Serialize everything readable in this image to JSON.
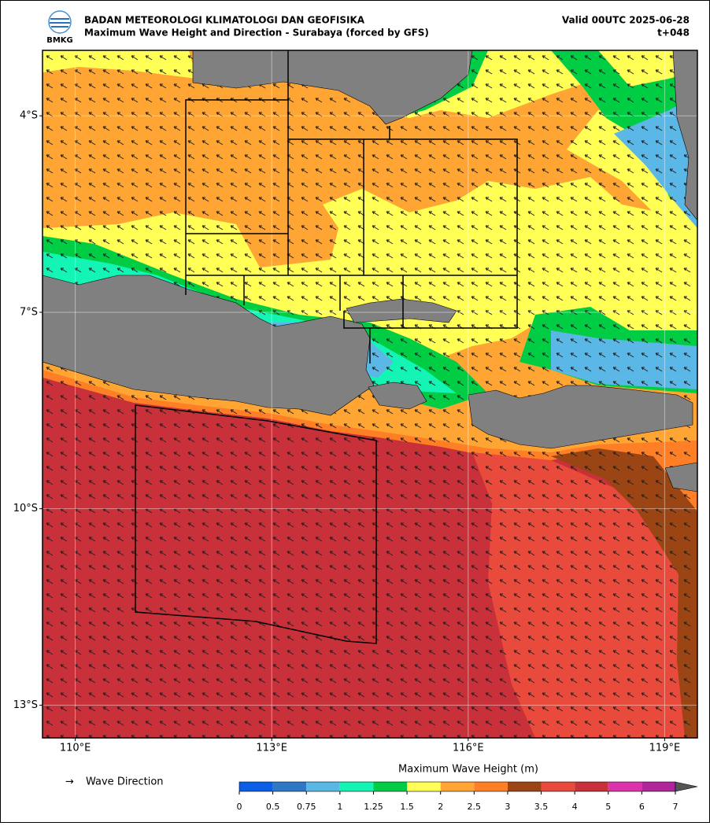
{
  "header": {
    "agency": "BADAN METEOROLOGI KLIMATOLOGI DAN GEOFISIKA",
    "title": "Maximum Wave Height and Direction - Surabaya (forced by GFS)",
    "valid": "Valid 00UTC 2025-06-28",
    "lead": "t+048",
    "logo_text": "BMKG"
  },
  "map": {
    "xlim": [
      109.5,
      119.5
    ],
    "ylim": [
      -13.5,
      -3
    ],
    "xticks": [
      {
        "value": 110,
        "label": "110°E"
      },
      {
        "value": 113,
        "label": "113°E"
      },
      {
        "value": 116,
        "label": "116°E"
      },
      {
        "value": 119,
        "label": "119°E"
      }
    ],
    "yticks": [
      {
        "value": -4,
        "label": "4°S"
      },
      {
        "value": -7,
        "label": "7°S"
      },
      {
        "value": -10,
        "label": "10°S"
      },
      {
        "value": -13,
        "label": "13°S"
      }
    ],
    "grid": true
  },
  "legend": {
    "arrow": "→",
    "label": "Wave Direction"
  },
  "colorbar": {
    "title": "Maximum Wave Height (m)",
    "levels": [
      0,
      0.5,
      0.75,
      1,
      1.25,
      1.5,
      2,
      2.5,
      3,
      3.5,
      4,
      5,
      6,
      7
    ],
    "colors": [
      "#0a5fe6",
      "#2f78c4",
      "#5bb8e6",
      "#14f5b5",
      "#00cc44",
      "#ffff55",
      "#ffa533",
      "#ff7f27",
      "#9c4514",
      "#e84a3c",
      "#c8303a",
      "#dd33aa",
      "#b0259a"
    ]
  }
}
